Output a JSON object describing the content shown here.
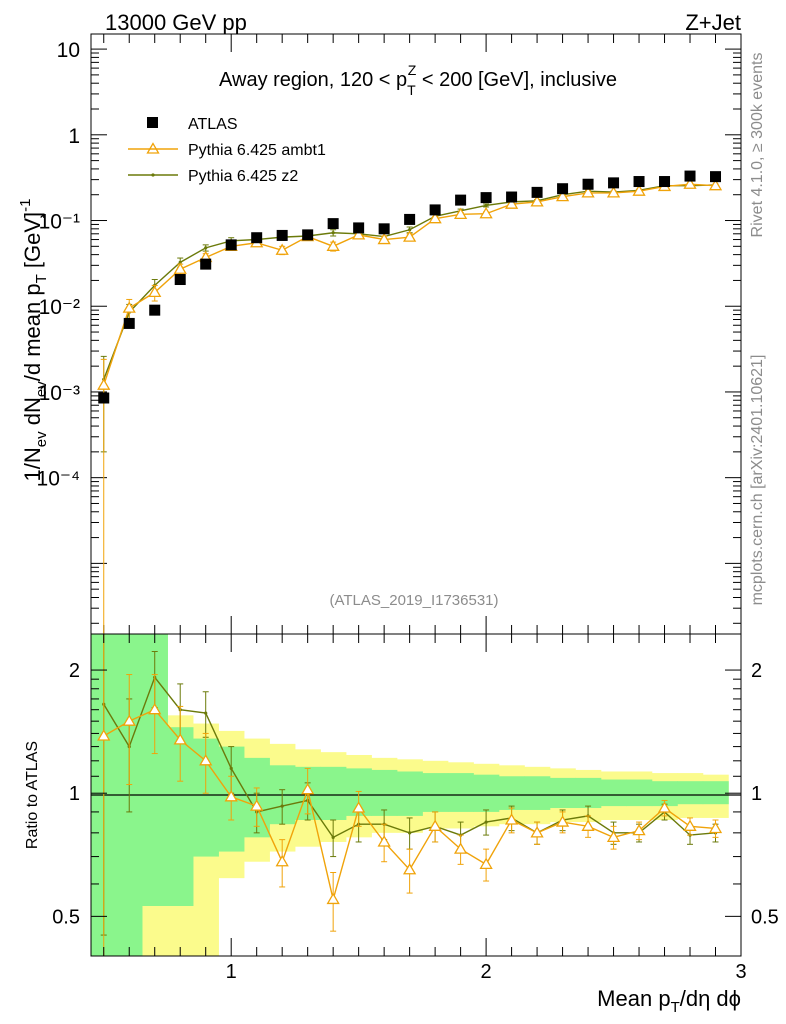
{
  "header": {
    "left": "13000 GeV pp",
    "right": "Z+Jet"
  },
  "side_text": {
    "rivet": "Rivet 4.1.0, ≥ 300k events",
    "mcplots": "mcplots.cern.ch [arXiv:2401.10621]"
  },
  "analysis_id": "(ATLAS_2019_I1736531)",
  "chart_data": [
    {
      "type": "scatter",
      "panel": "main",
      "title": "Away region, 120 < p_T^Z < 200 [GeV], inclusive",
      "ylabel": "1/N_ev dN_ev/d mean p_T [GeV]^-1",
      "yscale": "log",
      "ylim": [
        1.5e-06,
        15
      ],
      "xlim": [
        0.45,
        3.0
      ],
      "ytick_labels": [
        "10⁻⁴",
        "10⁻³",
        "10⁻²",
        "10⁻¹",
        "1",
        "10"
      ],
      "legend": [
        "ATLAS",
        "Pythia 6.425 ambt1",
        "Pythia 6.425 z2"
      ],
      "x": [
        0.5,
        0.6,
        0.7,
        0.8,
        0.9,
        1.0,
        1.1,
        1.2,
        1.3,
        1.4,
        1.5,
        1.6,
        1.7,
        1.8,
        1.9,
        2.0,
        2.1,
        2.2,
        2.3,
        2.4,
        2.5,
        2.6,
        2.7,
        2.8,
        2.9
      ],
      "series": [
        {
          "name": "ATLAS",
          "color": "#000000",
          "values": [
            0.00085,
            0.0063,
            0.009,
            0.0205,
            0.031,
            0.052,
            0.063,
            0.067,
            0.068,
            0.092,
            0.082,
            0.08,
            0.103,
            0.133,
            0.173,
            0.185,
            0.188,
            0.213,
            0.235,
            0.265,
            0.275,
            0.285,
            0.285,
            0.33,
            0.325
          ]
        },
        {
          "name": "Pythia 6.425 ambt1",
          "color": "#f0a30a",
          "values": [
            0.0012,
            0.0095,
            0.0145,
            0.027,
            0.037,
            0.05,
            0.055,
            0.045,
            0.065,
            0.05,
            0.068,
            0.06,
            0.064,
            0.105,
            0.118,
            0.12,
            0.155,
            0.165,
            0.19,
            0.21,
            0.21,
            0.22,
            0.25,
            0.265,
            0.255
          ],
          "errors": [
            0.0012,
            0.0025,
            0.003,
            0.004,
            0.004,
            0.005,
            0.005,
            0.005,
            0.006,
            0.006,
            0.006,
            0.006,
            0.006,
            0.006,
            0.006,
            0.006,
            0.006,
            0.006,
            0.006,
            0.006,
            0.006,
            0.006,
            0.006,
            0.006,
            0.006
          ]
        },
        {
          "name": "Pythia 6.425 z2",
          "color": "#6b7a0a",
          "values": [
            0.0014,
            0.0085,
            0.0175,
            0.0325,
            0.048,
            0.058,
            0.06,
            0.064,
            0.066,
            0.072,
            0.07,
            0.065,
            0.078,
            0.112,
            0.13,
            0.15,
            0.165,
            0.17,
            0.2,
            0.22,
            0.215,
            0.225,
            0.255,
            0.255,
            0.26
          ],
          "errors": [
            0.0012,
            0.002,
            0.003,
            0.004,
            0.004,
            0.005,
            0.005,
            0.005,
            0.005,
            0.006,
            0.006,
            0.006,
            0.006,
            0.006,
            0.006,
            0.006,
            0.006,
            0.006,
            0.006,
            0.006,
            0.006,
            0.006,
            0.006,
            0.006,
            0.006
          ]
        }
      ]
    },
    {
      "type": "line",
      "panel": "ratio",
      "ylabel": "Ratio to ATLAS",
      "xlabel": "Mean p_T/dη dϕ",
      "yscale": "log",
      "ylim": [
        0.4,
        2.45
      ],
      "xlim": [
        0.45,
        3.0
      ],
      "xtick_labels": [
        "1",
        "2",
        "3"
      ],
      "ytick_labels": [
        "0.5",
        "1",
        "2"
      ],
      "x": [
        0.5,
        0.6,
        0.7,
        0.8,
        0.9,
        1.0,
        1.1,
        1.2,
        1.3,
        1.4,
        1.5,
        1.6,
        1.7,
        1.8,
        1.9,
        2.0,
        2.1,
        2.2,
        2.3,
        2.4,
        2.5,
        2.6,
        2.7,
        2.8,
        2.9
      ],
      "bands": {
        "bin_edges": [
          0.45,
          0.55,
          0.65,
          0.75,
          0.85,
          0.95,
          1.05,
          1.15,
          1.25,
          1.35,
          1.45,
          1.55,
          1.65,
          1.75,
          1.85,
          1.95,
          2.05,
          2.15,
          2.25,
          2.35,
          2.45,
          2.55,
          2.65,
          2.75,
          2.85,
          2.95
        ],
        "green": {
          "color": "#8af58c",
          "lower": [
            0.35,
            0.35,
            0.53,
            0.53,
            0.7,
            0.72,
            0.78,
            0.84,
            0.86,
            0.86,
            0.88,
            0.88,
            0.88,
            0.9,
            0.9,
            0.9,
            0.91,
            0.91,
            0.92,
            0.92,
            0.93,
            0.93,
            0.93,
            0.94,
            0.94
          ],
          "upper": [
            2.5,
            2.5,
            2.5,
            1.45,
            1.36,
            1.3,
            1.22,
            1.17,
            1.16,
            1.16,
            1.15,
            1.14,
            1.13,
            1.12,
            1.12,
            1.11,
            1.1,
            1.1,
            1.09,
            1.09,
            1.08,
            1.08,
            1.07,
            1.07,
            1.07
          ]
        },
        "yellow": {
          "color": "#fbfb8c",
          "lower": [
            0.35,
            0.35,
            0.35,
            0.35,
            0.35,
            0.62,
            0.68,
            0.72,
            0.74,
            0.76,
            0.78,
            0.8,
            0.8,
            0.82,
            0.82,
            0.83,
            0.84,
            0.84,
            0.85,
            0.85,
            0.86,
            0.86,
            0.86,
            0.87,
            0.87
          ],
          "upper": [
            2.5,
            2.5,
            2.5,
            1.55,
            1.48,
            1.42,
            1.36,
            1.32,
            1.28,
            1.26,
            1.24,
            1.22,
            1.21,
            1.2,
            1.19,
            1.18,
            1.17,
            1.16,
            1.15,
            1.14,
            1.13,
            1.13,
            1.12,
            1.12,
            1.11
          ]
        }
      },
      "series": [
        {
          "name": "Pythia 6.425 ambt1",
          "color": "#f0a30a",
          "values": [
            1.38,
            1.5,
            1.6,
            1.35,
            1.2,
            0.98,
            0.93,
            0.68,
            1.02,
            0.55,
            0.92,
            0.76,
            0.65,
            0.83,
            0.73,
            0.67,
            0.86,
            0.8,
            0.85,
            0.83,
            0.78,
            0.81,
            0.92,
            0.83,
            0.82
          ],
          "errors": [
            1.3,
            0.45,
            0.35,
            0.28,
            0.2,
            0.12,
            0.1,
            0.09,
            0.13,
            0.09,
            0.09,
            0.08,
            0.08,
            0.07,
            0.06,
            0.06,
            0.06,
            0.05,
            0.05,
            0.05,
            0.05,
            0.04,
            0.04,
            0.04,
            0.04
          ]
        },
        {
          "name": "Pythia 6.425 z2",
          "color": "#6b7a0a",
          "values": [
            1.65,
            1.3,
            1.92,
            1.6,
            1.57,
            1.15,
            0.9,
            0.93,
            0.96,
            0.78,
            0.84,
            0.84,
            0.8,
            0.83,
            0.79,
            0.85,
            0.87,
            0.8,
            0.86,
            0.88,
            0.8,
            0.8,
            0.9,
            0.79,
            0.8
          ],
          "errors": [
            1.2,
            0.4,
            0.3,
            0.25,
            0.2,
            0.15,
            0.1,
            0.09,
            0.1,
            0.08,
            0.08,
            0.07,
            0.07,
            0.07,
            0.06,
            0.06,
            0.06,
            0.05,
            0.05,
            0.05,
            0.05,
            0.04,
            0.04,
            0.04,
            0.04
          ]
        }
      ]
    }
  ]
}
